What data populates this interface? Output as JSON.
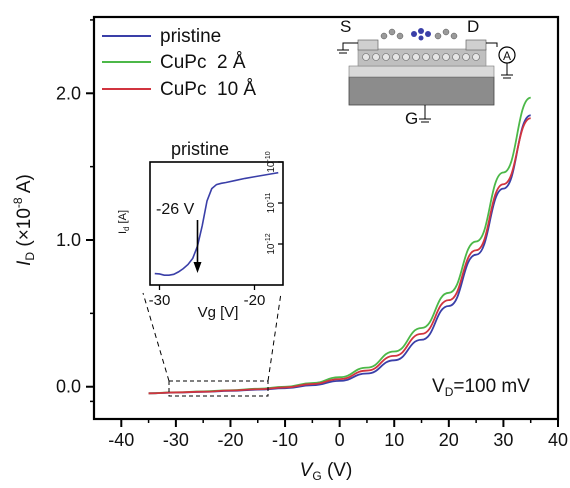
{
  "chart_data": {
    "type": "line",
    "xlabel": "V",
    "xlabel_sub": "G",
    "xlabel_unit": " (V)",
    "ylabel": "I",
    "ylabel_sub": "D",
    "ylabel_unit": " (×10",
    "ylabel_exp": "-8",
    "ylabel_tail": " A)",
    "xlim": [
      -45,
      40
    ],
    "ylim": [
      -0.22,
      2.52
    ],
    "x_ticks": [
      -40,
      -30,
      -20,
      -10,
      0,
      10,
      20,
      30,
      40
    ],
    "x_tick_labels": [
      "-40",
      "-30",
      "-20",
      "-10",
      "0",
      "10",
      "20",
      "30",
      "40"
    ],
    "y_ticks": [
      0.0,
      1.0,
      2.0
    ],
    "y_tick_labels": [
      "0.0",
      "1.0",
      "2.0"
    ],
    "annotation": "V",
    "annotation_sub": "D",
    "annotation_tail": "=100 mV",
    "legend_position": "top-left",
    "series": [
      {
        "name": "pristine",
        "color": "#3a3fa8",
        "x": [
          -35,
          -30,
          -25,
          -20,
          -15,
          -10,
          -5,
          0,
          5,
          10,
          15,
          20,
          25,
          30,
          35
        ],
        "y": [
          -0.045,
          -0.04,
          -0.035,
          -0.028,
          -0.02,
          -0.01,
          0.01,
          0.04,
          0.09,
          0.18,
          0.32,
          0.55,
          0.9,
          1.35,
          1.85
        ]
      },
      {
        "name": "CuPc  2 Å",
        "color": "#4cb848",
        "x": [
          -35,
          -30,
          -25,
          -20,
          -15,
          -10,
          -5,
          0,
          5,
          10,
          15,
          20,
          25,
          30,
          35
        ],
        "y": [
          -0.045,
          -0.038,
          -0.032,
          -0.024,
          -0.014,
          0.0,
          0.025,
          0.065,
          0.13,
          0.24,
          0.4,
          0.64,
          0.99,
          1.46,
          1.97
        ]
      },
      {
        "name": "CuPc  10 Å",
        "color": "#d1343f",
        "x": [
          -35,
          -30,
          -25,
          -20,
          -15,
          -10,
          -5,
          0,
          5,
          10,
          15,
          20,
          25,
          30,
          35
        ],
        "y": [
          -0.045,
          -0.039,
          -0.034,
          -0.026,
          -0.017,
          -0.005,
          0.018,
          0.052,
          0.11,
          0.21,
          0.36,
          0.59,
          0.93,
          1.38,
          1.83
        ]
      }
    ],
    "inset": {
      "title": "pristine",
      "xlabel": "Vg [V]",
      "ylabel_main": "I",
      "ylabel_sub": "d",
      "ylabel_unit": " [A]",
      "xlim": [
        -31,
        -17
      ],
      "ylog_lim": [
        -13,
        -10
      ],
      "x_ticks": [
        -30,
        -20
      ],
      "x_tick_labels": [
        "-30",
        "-20"
      ],
      "y_ticks": [
        -12,
        -11,
        -10
      ],
      "y_tick_bases": [
        "10",
        "10",
        "10"
      ],
      "y_tick_exps": [
        "-12",
        "-11",
        "-10"
      ],
      "annotation": "-26 V",
      "arrow_x": -26,
      "series": {
        "color": "#3a3fa8",
        "x": [
          -30.5,
          -30,
          -29.5,
          -29,
          -28.5,
          -28,
          -27.5,
          -27,
          -26.5,
          -26,
          -25.5,
          -25,
          -24.5,
          -24,
          -23.5,
          -23,
          -22,
          -21,
          -20,
          -19,
          -18,
          -17.5
        ],
        "y": [
          -12.72,
          -12.73,
          -12.76,
          -12.76,
          -12.74,
          -12.68,
          -12.6,
          -12.5,
          -12.35,
          -12.05,
          -11.55,
          -10.95,
          -10.65,
          -10.55,
          -10.52,
          -10.5,
          -10.45,
          -10.4,
          -10.36,
          -10.32,
          -10.28,
          -10.26
        ]
      }
    },
    "schematic_labels": {
      "source": "S",
      "drain": "D",
      "gate": "G",
      "meter": "A"
    }
  }
}
